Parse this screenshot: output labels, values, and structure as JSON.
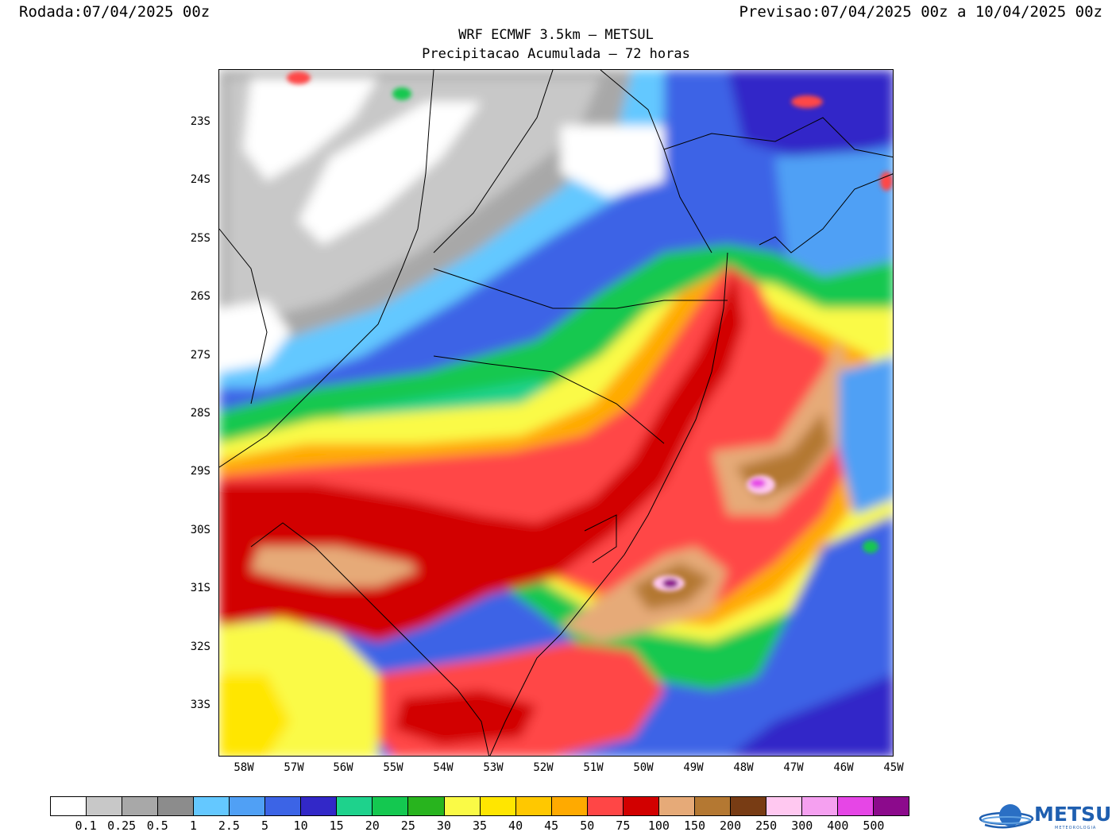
{
  "header": {
    "run_label": "Rodada:",
    "run_value": "07/04/2025 00z",
    "forecast_label": "Previsao:",
    "forecast_value": "07/04/2025 00z a 10/04/2025 00z"
  },
  "title": "WRF ECMWF 3.5km — METSUL",
  "subtitle": "Precipitacao Acumulada — 72 horas",
  "axes": {
    "lat_labels": [
      "23S",
      "24S",
      "25S",
      "26S",
      "27S",
      "28S",
      "29S",
      "30S",
      "31S",
      "32S",
      "33S"
    ],
    "lon_labels": [
      "58W",
      "57W",
      "56W",
      "55W",
      "54W",
      "53W",
      "52W",
      "51W",
      "50W",
      "49W",
      "48W",
      "47W",
      "46W",
      "45W"
    ]
  },
  "colorbar": {
    "colors": [
      "#ffffff",
      "#c8c8c8",
      "#a8a8a8",
      "#8c8c8c",
      "#64c8ff",
      "#50a0f5",
      "#3c64e6",
      "#3228c8",
      "#1ed28c",
      "#14c850",
      "#28b41e",
      "#fafa46",
      "#ffe600",
      "#ffc800",
      "#ffaa00",
      "#ff4646",
      "#d20000",
      "#e6aa78",
      "#b47832",
      "#783c14",
      "#ffc8f0",
      "#f5a0f0",
      "#e646e6",
      "#8c0a8c"
    ],
    "labels": [
      "0.1",
      "0.25",
      "0.5",
      "1",
      "2.5",
      "5",
      "10",
      "15",
      "20",
      "25",
      "30",
      "35",
      "40",
      "45",
      "50",
      "75",
      "100",
      "150",
      "200",
      "250",
      "300",
      "400",
      "500"
    ]
  },
  "logo": {
    "name": "METSUL",
    "tagline": "METEOROLOGIA"
  }
}
